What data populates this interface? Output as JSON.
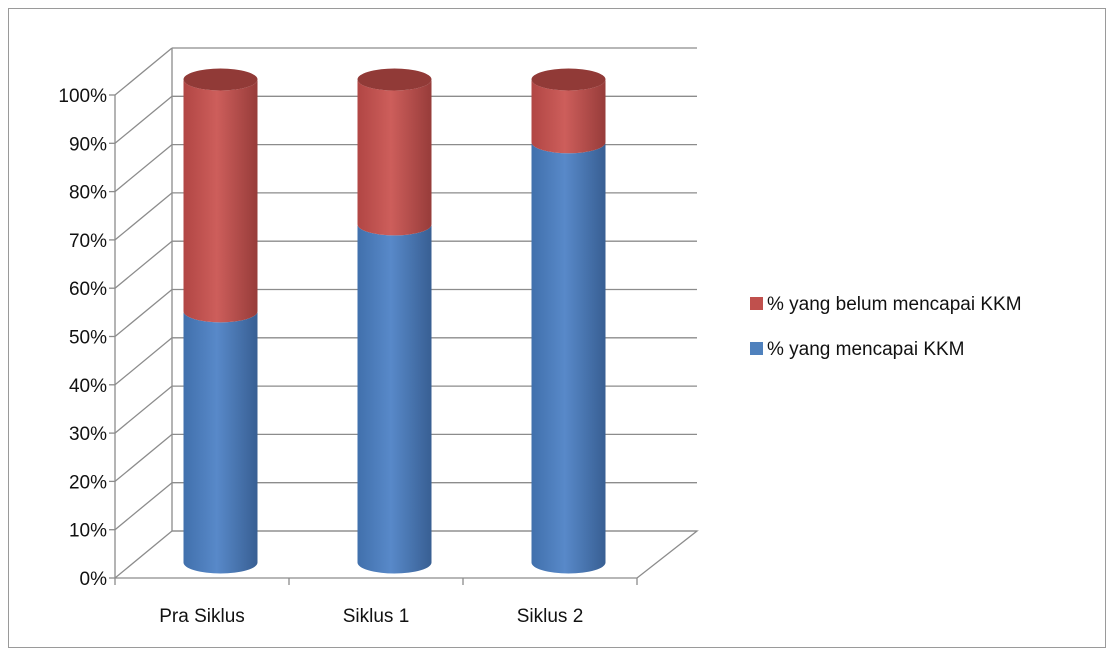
{
  "chart_data": {
    "type": "bar",
    "stacked": true,
    "percent_stacked": true,
    "three_d": true,
    "bar_shape": "cylinder",
    "categories": [
      "Pra Siklus",
      "Siklus 1",
      "Siklus 2"
    ],
    "series": [
      {
        "name": "% yang mencapai KKM",
        "values": [
          52,
          70,
          87
        ],
        "color": "#4a7fc4"
      },
      {
        "name": "% yang belum mencapai KKM",
        "values": [
          48,
          30,
          13
        ],
        "color": "#c9504d"
      }
    ],
    "yticks": [
      "0%",
      "10%",
      "20%",
      "30%",
      "40%",
      "50%",
      "60%",
      "70%",
      "80%",
      "90%",
      "100%"
    ],
    "ylim": [
      0,
      100
    ],
    "grid": true,
    "legend": {
      "position": "right",
      "items": [
        {
          "label": "% yang belum mencapai KKM",
          "color": "#c0504d"
        },
        {
          "label": "% yang mencapai KKM",
          "color": "#4f81bd"
        }
      ]
    }
  }
}
